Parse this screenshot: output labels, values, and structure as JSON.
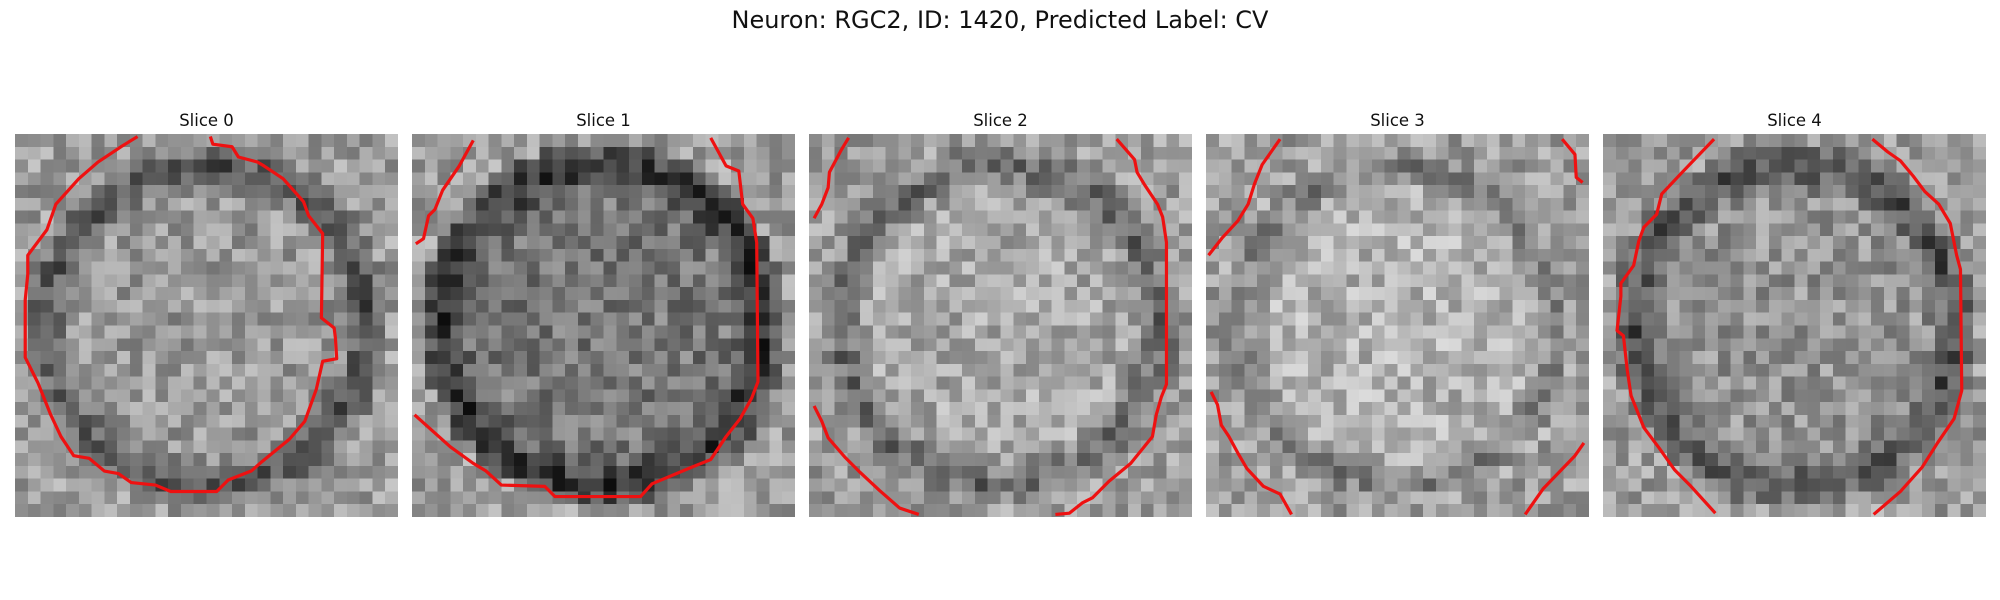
{
  "figure": {
    "title": "Neuron: RGC2, ID: 1420, Predicted Label: CV"
  },
  "colors": {
    "contour": "#ee1111",
    "background": "#ffffff"
  },
  "panels": [
    {
      "title": "Slice 0",
      "seed": 11,
      "brightness": 0.6,
      "ring": 0.3
    },
    {
      "title": "Slice 1",
      "seed": 23,
      "brightness": 0.47,
      "ring": 0.3
    },
    {
      "title": "Slice 2",
      "seed": 37,
      "brightness": 0.66,
      "ring": 0.28
    },
    {
      "title": "Slice 3",
      "seed": 41,
      "brightness": 0.7,
      "ring": 0.22
    },
    {
      "title": "Slice 4",
      "seed": 53,
      "brightness": 0.58,
      "ring": 0.3
    }
  ]
}
